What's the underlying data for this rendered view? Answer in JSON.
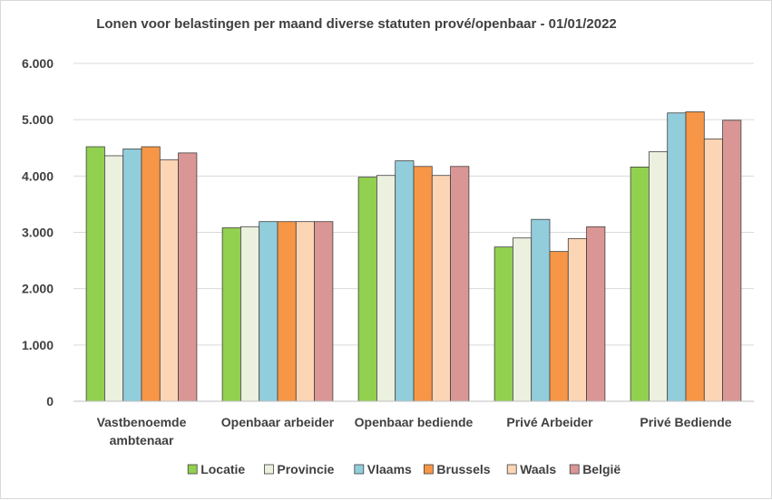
{
  "chart_data": {
    "type": "bar",
    "title": "Lonen voor belastingen per maand diverse statuten prové/openbaar - 01/01/2022",
    "xlabel": "",
    "ylabel": "",
    "ylim": [
      0,
      6000
    ],
    "yticks": [
      {
        "value": 0,
        "label": "0"
      },
      {
        "value": 1000,
        "label": "1.000"
      },
      {
        "value": 2000,
        "label": "2.000"
      },
      {
        "value": 3000,
        "label": "3.000"
      },
      {
        "value": 4000,
        "label": "4.000"
      },
      {
        "value": 5000,
        "label": "5.000"
      },
      {
        "value": 6000,
        "label": "6.000"
      }
    ],
    "categories": [
      [
        "Vastbenoemde",
        "ambtenaar"
      ],
      [
        "Openbaar arbeider"
      ],
      [
        "Openbaar bediende"
      ],
      [
        "Privé Arbeider"
      ],
      [
        "Privé Bediende"
      ]
    ],
    "grid": true,
    "legend_position": "bottom",
    "series": [
      {
        "name": "Locatie",
        "color": "#92d050",
        "values": [
          4520,
          3080,
          3980,
          2740,
          4160
        ]
      },
      {
        "name": "Provincie",
        "color": "#ebf1de",
        "values": [
          4360,
          3100,
          4010,
          2900,
          4430
        ]
      },
      {
        "name": "Vlaams",
        "color": "#92cddc",
        "values": [
          4480,
          3190,
          4270,
          3230,
          5120
        ]
      },
      {
        "name": "Brussels",
        "color": "#f79646",
        "values": [
          4520,
          3190,
          4170,
          2660,
          5140
        ]
      },
      {
        "name": "Waals",
        "color": "#fcd5b5",
        "values": [
          4290,
          3190,
          4010,
          2890,
          4660
        ]
      },
      {
        "name": "België",
        "color": "#da9694",
        "values": [
          4410,
          3190,
          4170,
          3100,
          4990
        ]
      }
    ]
  }
}
